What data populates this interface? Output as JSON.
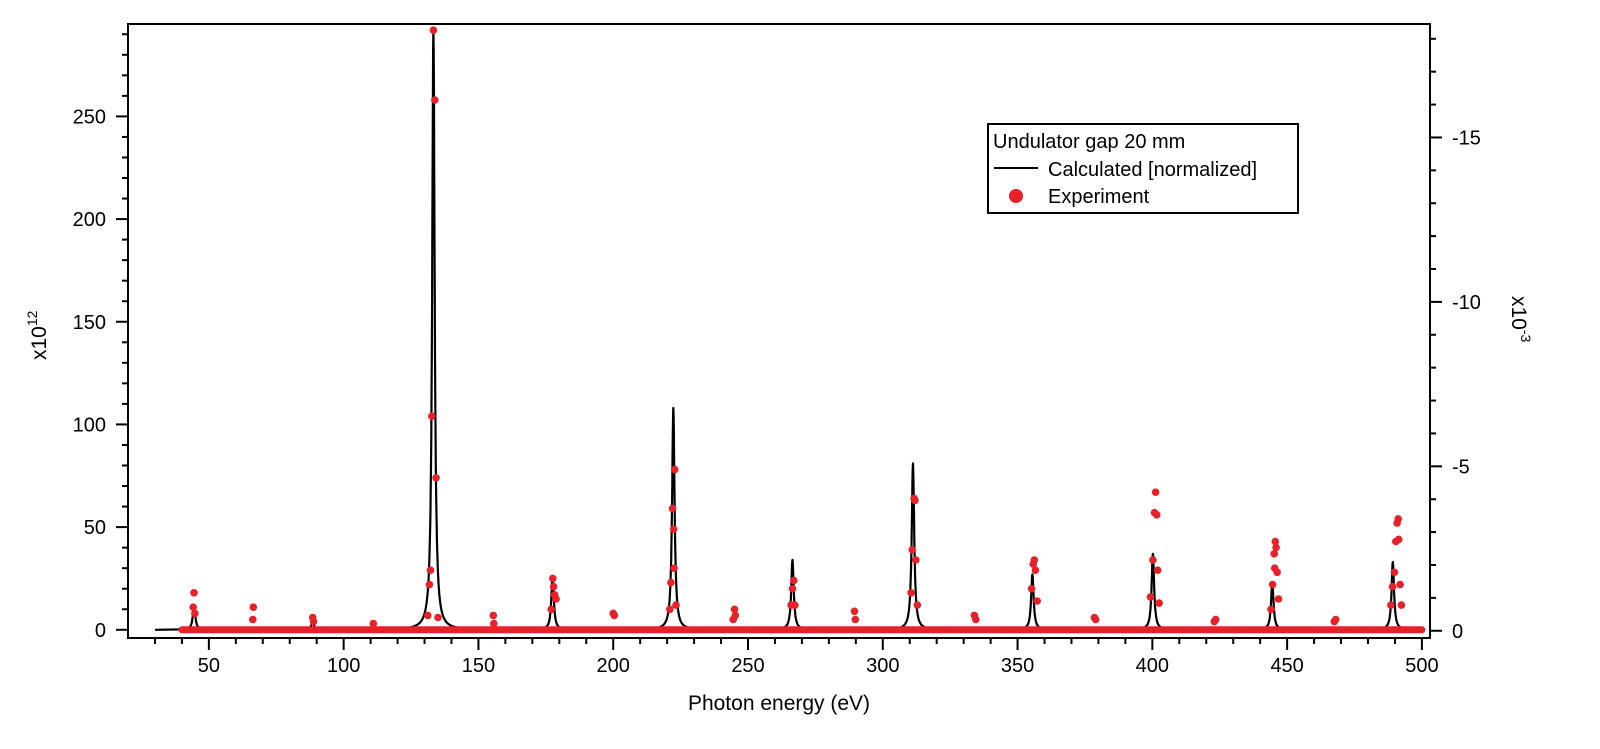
{
  "chart_data": {
    "type": "line",
    "xlabel": "Photon energy (eV)",
    "xlim": [
      20,
      503
    ],
    "x_ticks": [
      "50",
      "100",
      "150",
      "200",
      "250",
      "300",
      "350",
      "400",
      "450",
      "500"
    ],
    "left_axis": {
      "multiplier_label": "x10",
      "multiplier_exponent": "12",
      "ylim": [
        -4,
        295
      ],
      "ticks": [
        "0",
        "50",
        "100",
        "150",
        "200",
        "250"
      ]
    },
    "right_axis": {
      "multiplier_label": "x10",
      "multiplier_exponent": "-3",
      "reversed": true,
      "ylim": [
        0.22,
        -18.45
      ],
      "ticks": [
        "0",
        "-5",
        "-10",
        "-15"
      ]
    },
    "legend": {
      "title": "Undulator gap 20 mm",
      "placement": "top-right",
      "entries": [
        "Calculated [normalized]",
        "Experiment"
      ]
    },
    "colors": {
      "calculated": "#000000",
      "experiment": "#e8202a"
    },
    "series": [
      {
        "name": "Calculated [normalized]",
        "axis": "left",
        "style": "line",
        "baseline": 0,
        "peaks": [
          {
            "x": 44.5,
            "y": 12
          },
          {
            "x": 88.5,
            "y": 4
          },
          {
            "x": 133.3,
            "y": 292
          },
          {
            "x": 177.5,
            "y": 26
          },
          {
            "x": 222.3,
            "y": 108
          },
          {
            "x": 266.5,
            "y": 34
          },
          {
            "x": 311.2,
            "y": 81
          },
          {
            "x": 355.5,
            "y": 27
          },
          {
            "x": 400.2,
            "y": 37
          },
          {
            "x": 444.5,
            "y": 23
          },
          {
            "x": 489.2,
            "y": 33
          }
        ]
      },
      {
        "name": "Experiment",
        "axis": "left",
        "style": "markers",
        "baseline": 0,
        "x_range": [
          40,
          500
        ],
        "x_step": 0.5,
        "points": [
          {
            "x": 44.5,
            "y": 18
          },
          {
            "x": 44.2,
            "y": 11
          },
          {
            "x": 44.8,
            "y": 8
          },
          {
            "x": 66.5,
            "y": 11
          },
          {
            "x": 66.3,
            "y": 5
          },
          {
            "x": 88.5,
            "y": 6
          },
          {
            "x": 88.8,
            "y": 4
          },
          {
            "x": 111.0,
            "y": 3
          },
          {
            "x": 131.2,
            "y": 7
          },
          {
            "x": 131.8,
            "y": 22
          },
          {
            "x": 132.2,
            "y": 29
          },
          {
            "x": 132.7,
            "y": 104
          },
          {
            "x": 133.3,
            "y": 292
          },
          {
            "x": 133.8,
            "y": 258
          },
          {
            "x": 134.3,
            "y": 74
          },
          {
            "x": 135.0,
            "y": 6
          },
          {
            "x": 155.5,
            "y": 7
          },
          {
            "x": 155.7,
            "y": 3
          },
          {
            "x": 177.0,
            "y": 10
          },
          {
            "x": 177.6,
            "y": 25
          },
          {
            "x": 177.9,
            "y": 21
          },
          {
            "x": 178.3,
            "y": 17
          },
          {
            "x": 178.8,
            "y": 15
          },
          {
            "x": 200.0,
            "y": 8
          },
          {
            "x": 200.4,
            "y": 7
          },
          {
            "x": 221.0,
            "y": 10
          },
          {
            "x": 221.4,
            "y": 23
          },
          {
            "x": 222.0,
            "y": 59
          },
          {
            "x": 222.4,
            "y": 49
          },
          {
            "x": 222.8,
            "y": 78
          },
          {
            "x": 222.6,
            "y": 30
          },
          {
            "x": 223.3,
            "y": 12
          },
          {
            "x": 244.5,
            "y": 5
          },
          {
            "x": 245.0,
            "y": 10
          },
          {
            "x": 245.3,
            "y": 7
          },
          {
            "x": 266.0,
            "y": 12
          },
          {
            "x": 266.5,
            "y": 20
          },
          {
            "x": 267.0,
            "y": 24
          },
          {
            "x": 267.4,
            "y": 12
          },
          {
            "x": 289.5,
            "y": 9
          },
          {
            "x": 289.8,
            "y": 5
          },
          {
            "x": 310.5,
            "y": 18
          },
          {
            "x": 310.9,
            "y": 39
          },
          {
            "x": 311.6,
            "y": 64
          },
          {
            "x": 311.9,
            "y": 63
          },
          {
            "x": 312.3,
            "y": 34
          },
          {
            "x": 312.8,
            "y": 12
          },
          {
            "x": 334.0,
            "y": 7
          },
          {
            "x": 334.5,
            "y": 5
          },
          {
            "x": 355.2,
            "y": 20
          },
          {
            "x": 355.8,
            "y": 32
          },
          {
            "x": 356.2,
            "y": 34
          },
          {
            "x": 356.6,
            "y": 29
          },
          {
            "x": 357.3,
            "y": 14
          },
          {
            "x": 378.5,
            "y": 6
          },
          {
            "x": 379.0,
            "y": 5
          },
          {
            "x": 399.3,
            "y": 16
          },
          {
            "x": 400.2,
            "y": 34
          },
          {
            "x": 400.8,
            "y": 57
          },
          {
            "x": 401.2,
            "y": 67
          },
          {
            "x": 401.6,
            "y": 56
          },
          {
            "x": 402.0,
            "y": 29
          },
          {
            "x": 402.5,
            "y": 13
          },
          {
            "x": 423.0,
            "y": 4
          },
          {
            "x": 423.5,
            "y": 5
          },
          {
            "x": 444.0,
            "y": 10
          },
          {
            "x": 444.6,
            "y": 22
          },
          {
            "x": 445.2,
            "y": 37
          },
          {
            "x": 445.6,
            "y": 43
          },
          {
            "x": 445.9,
            "y": 40
          },
          {
            "x": 445.4,
            "y": 30
          },
          {
            "x": 446.3,
            "y": 28
          },
          {
            "x": 446.8,
            "y": 15
          },
          {
            "x": 467.5,
            "y": 4
          },
          {
            "x": 468.0,
            "y": 5
          },
          {
            "x": 488.5,
            "y": 12
          },
          {
            "x": 489.1,
            "y": 21
          },
          {
            "x": 489.8,
            "y": 28
          },
          {
            "x": 490.3,
            "y": 43
          },
          {
            "x": 490.8,
            "y": 52
          },
          {
            "x": 491.2,
            "y": 54
          },
          {
            "x": 491.4,
            "y": 44
          },
          {
            "x": 491.9,
            "y": 22
          },
          {
            "x": 492.4,
            "y": 12
          }
        ]
      }
    ]
  }
}
